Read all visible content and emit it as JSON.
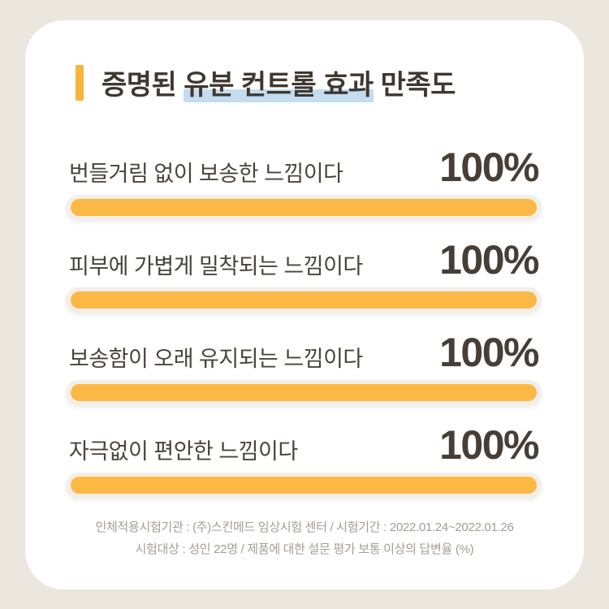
{
  "title": {
    "prefix": "증명된 ",
    "highlighted": "유분 컨트롤 효과",
    "suffix": " 만족도",
    "full": "증명된 유분 컨트롤 효과 만족도"
  },
  "items": [
    {
      "label": "번들거림 없이 보송한 느낌이다",
      "value": 100,
      "percent_label": "100%"
    },
    {
      "label": "피부에 가볍게 밀착되는 느낌이다",
      "value": 100,
      "percent_label": "100%"
    },
    {
      "label": "보송함이 오래 유지되는 느낌이다",
      "value": 100,
      "percent_label": "100%"
    },
    {
      "label": "자극없이 편안한 느낌이다",
      "value": 100,
      "percent_label": "100%"
    }
  ],
  "footnote": {
    "line1": "인체적용시험기관 : (주)스킨메드 임상시험 센터 / 시험기간 : 2022.01.24~2022.01.26",
    "line2": "시험대상 : 성인 22명 / 제품에 대한 설문 평가 보통 이상의 답변율 (%)"
  },
  "colors": {
    "page_background": "#EBE7DF",
    "card_background": "#FFFFFF",
    "accent_yellow": "#F9B43B",
    "bar_yellow": "#FCB845",
    "bar_track": "#F3EFE8",
    "highlight_blue": "#C4DCF0",
    "text_dark": "#3E3831",
    "text_label": "#4A433C",
    "footnote_gray": "#A39D94"
  },
  "chart_data": {
    "type": "bar",
    "orientation": "horizontal",
    "title": "증명된 유분 컨트롤 효과 만족도",
    "categories": [
      "번들거림 없이 보송한 느낌이다",
      "피부에 가볍게 밀착되는 느낌이다",
      "보송함이 오래 유지되는 느낌이다",
      "자극없이 편안한 느낌이다"
    ],
    "values": [
      100,
      100,
      100,
      100
    ],
    "data_labels": [
      "100%",
      "100%",
      "100%",
      "100%"
    ],
    "unit": "%",
    "xlim": [
      0,
      100
    ],
    "grid": false,
    "legend": false,
    "footnote": "인체적용시험기관 : (주)스킨메드 임상시험 센터 / 시험기간 : 2022.01.24~2022.01.26 / 시험대상 : 성인 22명 / 제품에 대한 설문 평가 보통 이상의 답변율 (%)"
  }
}
